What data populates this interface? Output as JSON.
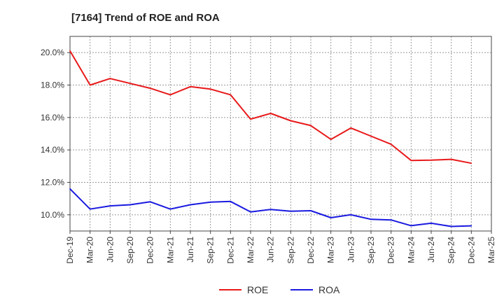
{
  "chart_data": {
    "type": "line",
    "title": "[7164]  Trend of ROE and ROA",
    "xlabel": "",
    "ylabel": "",
    "ylim": [
      9.0,
      21.0
    ],
    "y_ticks": [
      "10.0%",
      "12.0%",
      "14.0%",
      "16.0%",
      "18.0%",
      "20.0%"
    ],
    "y_tick_values": [
      10,
      12,
      14,
      16,
      18,
      20
    ],
    "categories": [
      "Dec-19",
      "Mar-20",
      "Jun-20",
      "Sep-20",
      "Dec-20",
      "Mar-21",
      "Jun-21",
      "Sep-21",
      "Dec-21",
      "Mar-22",
      "Jun-22",
      "Sep-22",
      "Dec-22",
      "Mar-23",
      "Jun-23",
      "Sep-23",
      "Dec-23",
      "Mar-24",
      "Jun-24",
      "Sep-24",
      "Dec-24",
      "Mar-25"
    ],
    "grid": true,
    "legend_position": "bottom",
    "series": [
      {
        "name": "ROE",
        "color": "#e8191a",
        "values": [
          20.1,
          18.0,
          18.4,
          18.1,
          17.8,
          17.4,
          17.9,
          17.75,
          17.4,
          15.9,
          16.25,
          15.8,
          15.5,
          14.65,
          15.35,
          14.85,
          14.35,
          13.35,
          13.37,
          13.42,
          13.18,
          null
        ]
      },
      {
        "name": "ROA",
        "color": "#1a1ae0",
        "values": [
          11.6,
          10.35,
          10.55,
          10.62,
          10.8,
          10.35,
          10.62,
          10.78,
          10.82,
          10.18,
          10.33,
          10.22,
          10.25,
          9.82,
          10.0,
          9.72,
          9.68,
          9.33,
          9.48,
          9.28,
          9.32,
          null
        ]
      }
    ]
  }
}
